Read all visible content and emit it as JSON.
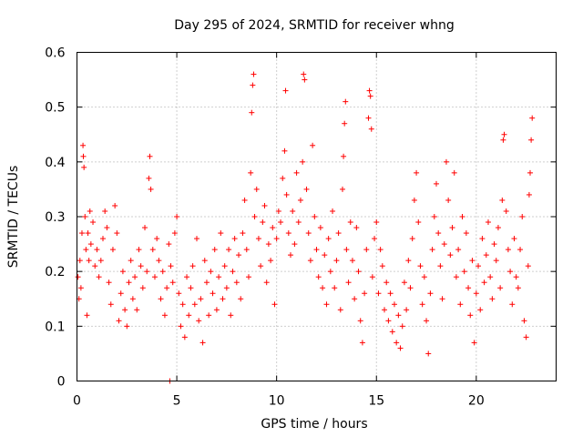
{
  "chart_data": {
    "type": "scatter",
    "title": "Day 295 of 2024, SRMTID for receiver whng",
    "xlabel": "GPS time / hours",
    "ylabel": "SRMTID / TECUs",
    "xlim": [
      0,
      24
    ],
    "ylim": [
      0,
      0.6
    ],
    "xticks": [
      0,
      5,
      10,
      15,
      20
    ],
    "xtick_labels": [
      "0",
      "5",
      "10",
      "15",
      "20"
    ],
    "yticks": [
      0,
      0.1,
      0.2,
      0.3,
      0.4,
      0.5,
      0.6
    ],
    "ytick_labels": [
      "0",
      "0.1",
      "0.2",
      "0.3",
      "0.4",
      "0.5",
      "0.6"
    ],
    "grid": true,
    "marker": "plus",
    "color": "#ff0000",
    "series": [
      {
        "name": "SRMTID",
        "points": [
          [
            0.05,
            0.19
          ],
          [
            0.1,
            0.15
          ],
          [
            0.15,
            0.22
          ],
          [
            0.2,
            0.17
          ],
          [
            0.25,
            0.27
          ],
          [
            0.3,
            0.43
          ],
          [
            0.32,
            0.41
          ],
          [
            0.35,
            0.39
          ],
          [
            0.4,
            0.3
          ],
          [
            0.45,
            0.24
          ],
          [
            0.5,
            0.12
          ],
          [
            0.55,
            0.27
          ],
          [
            0.6,
            0.22
          ],
          [
            0.65,
            0.31
          ],
          [
            0.7,
            0.25
          ],
          [
            0.8,
            0.29
          ],
          [
            0.9,
            0.21
          ],
          [
            1.0,
            0.24
          ],
          [
            1.1,
            0.19
          ],
          [
            1.2,
            0.22
          ],
          [
            1.3,
            0.26
          ],
          [
            1.4,
            0.31
          ],
          [
            1.5,
            0.28
          ],
          [
            1.6,
            0.18
          ],
          [
            1.7,
            0.14
          ],
          [
            1.8,
            0.24
          ],
          [
            1.9,
            0.32
          ],
          [
            2.0,
            0.27
          ],
          [
            2.1,
            0.11
          ],
          [
            2.2,
            0.16
          ],
          [
            2.3,
            0.2
          ],
          [
            2.4,
            0.13
          ],
          [
            2.5,
            0.1
          ],
          [
            2.6,
            0.18
          ],
          [
            2.7,
            0.22
          ],
          [
            2.8,
            0.15
          ],
          [
            2.9,
            0.19
          ],
          [
            3.0,
            0.13
          ],
          [
            3.1,
            0.24
          ],
          [
            3.2,
            0.21
          ],
          [
            3.3,
            0.17
          ],
          [
            3.4,
            0.28
          ],
          [
            3.5,
            0.2
          ],
          [
            3.6,
            0.37
          ],
          [
            3.65,
            0.41
          ],
          [
            3.7,
            0.35
          ],
          [
            3.8,
            0.24
          ],
          [
            3.9,
            0.19
          ],
          [
            4.0,
            0.26
          ],
          [
            4.1,
            0.22
          ],
          [
            4.2,
            0.15
          ],
          [
            4.3,
            0.2
          ],
          [
            4.4,
            0.12
          ],
          [
            4.5,
            0.17
          ],
          [
            4.6,
            0.25
          ],
          [
            4.65,
            0.0
          ],
          [
            4.7,
            0.21
          ],
          [
            4.8,
            0.18
          ],
          [
            4.9,
            0.27
          ],
          [
            5.0,
            0.3
          ],
          [
            5.1,
            0.16
          ],
          [
            5.2,
            0.1
          ],
          [
            5.3,
            0.14
          ],
          [
            5.4,
            0.08
          ],
          [
            5.5,
            0.19
          ],
          [
            5.6,
            0.12
          ],
          [
            5.7,
            0.17
          ],
          [
            5.8,
            0.21
          ],
          [
            5.9,
            0.14
          ],
          [
            6.0,
            0.26
          ],
          [
            6.1,
            0.11
          ],
          [
            6.2,
            0.15
          ],
          [
            6.3,
            0.07
          ],
          [
            6.4,
            0.22
          ],
          [
            6.5,
            0.18
          ],
          [
            6.6,
            0.12
          ],
          [
            6.7,
            0.2
          ],
          [
            6.8,
            0.16
          ],
          [
            6.9,
            0.24
          ],
          [
            7.0,
            0.13
          ],
          [
            7.1,
            0.19
          ],
          [
            7.2,
            0.27
          ],
          [
            7.3,
            0.15
          ],
          [
            7.4,
            0.21
          ],
          [
            7.5,
            0.17
          ],
          [
            7.6,
            0.24
          ],
          [
            7.7,
            0.12
          ],
          [
            7.8,
            0.2
          ],
          [
            7.9,
            0.26
          ],
          [
            8.0,
            0.18
          ],
          [
            8.1,
            0.23
          ],
          [
            8.2,
            0.15
          ],
          [
            8.3,
            0.27
          ],
          [
            8.4,
            0.33
          ],
          [
            8.5,
            0.24
          ],
          [
            8.6,
            0.19
          ],
          [
            8.7,
            0.38
          ],
          [
            8.75,
            0.49
          ],
          [
            8.8,
            0.54
          ],
          [
            8.85,
            0.56
          ],
          [
            8.9,
            0.3
          ],
          [
            9.0,
            0.35
          ],
          [
            9.1,
            0.26
          ],
          [
            9.2,
            0.21
          ],
          [
            9.3,
            0.29
          ],
          [
            9.4,
            0.32
          ],
          [
            9.5,
            0.18
          ],
          [
            9.6,
            0.25
          ],
          [
            9.7,
            0.22
          ],
          [
            9.8,
            0.28
          ],
          [
            9.9,
            0.14
          ],
          [
            10.0,
            0.26
          ],
          [
            10.1,
            0.31
          ],
          [
            10.2,
            0.29
          ],
          [
            10.3,
            0.37
          ],
          [
            10.4,
            0.42
          ],
          [
            10.45,
            0.53
          ],
          [
            10.5,
            0.34
          ],
          [
            10.6,
            0.27
          ],
          [
            10.7,
            0.23
          ],
          [
            10.8,
            0.31
          ],
          [
            10.9,
            0.25
          ],
          [
            11.0,
            0.38
          ],
          [
            11.1,
            0.29
          ],
          [
            11.2,
            0.33
          ],
          [
            11.3,
            0.4
          ],
          [
            11.35,
            0.56
          ],
          [
            11.4,
            0.55
          ],
          [
            11.5,
            0.35
          ],
          [
            11.6,
            0.27
          ],
          [
            11.7,
            0.22
          ],
          [
            11.8,
            0.43
          ],
          [
            11.9,
            0.3
          ],
          [
            12.0,
            0.24
          ],
          [
            12.1,
            0.19
          ],
          [
            12.2,
            0.28
          ],
          [
            12.3,
            0.17
          ],
          [
            12.4,
            0.23
          ],
          [
            12.5,
            0.14
          ],
          [
            12.6,
            0.26
          ],
          [
            12.7,
            0.2
          ],
          [
            12.8,
            0.31
          ],
          [
            12.9,
            0.17
          ],
          [
            13.0,
            0.22
          ],
          [
            13.1,
            0.27
          ],
          [
            13.2,
            0.13
          ],
          [
            13.3,
            0.35
          ],
          [
            13.35,
            0.41
          ],
          [
            13.4,
            0.47
          ],
          [
            13.45,
            0.51
          ],
          [
            13.5,
            0.24
          ],
          [
            13.6,
            0.18
          ],
          [
            13.7,
            0.29
          ],
          [
            13.8,
            0.22
          ],
          [
            13.9,
            0.15
          ],
          [
            14.0,
            0.28
          ],
          [
            14.1,
            0.2
          ],
          [
            14.2,
            0.11
          ],
          [
            14.3,
            0.07
          ],
          [
            14.4,
            0.16
          ],
          [
            14.5,
            0.24
          ],
          [
            14.6,
            0.48
          ],
          [
            14.65,
            0.53
          ],
          [
            14.7,
            0.52
          ],
          [
            14.75,
            0.46
          ],
          [
            14.8,
            0.19
          ],
          [
            14.9,
            0.26
          ],
          [
            15.0,
            0.29
          ],
          [
            15.1,
            0.16
          ],
          [
            15.2,
            0.24
          ],
          [
            15.3,
            0.21
          ],
          [
            15.4,
            0.13
          ],
          [
            15.5,
            0.18
          ],
          [
            15.6,
            0.11
          ],
          [
            15.7,
            0.16
          ],
          [
            15.8,
            0.09
          ],
          [
            15.9,
            0.14
          ],
          [
            16.0,
            0.07
          ],
          [
            16.1,
            0.12
          ],
          [
            16.2,
            0.06
          ],
          [
            16.3,
            0.1
          ],
          [
            16.4,
            0.18
          ],
          [
            16.5,
            0.13
          ],
          [
            16.6,
            0.22
          ],
          [
            16.7,
            0.17
          ],
          [
            16.8,
            0.26
          ],
          [
            16.9,
            0.33
          ],
          [
            17.0,
            0.38
          ],
          [
            17.1,
            0.29
          ],
          [
            17.2,
            0.21
          ],
          [
            17.3,
            0.14
          ],
          [
            17.4,
            0.19
          ],
          [
            17.5,
            0.11
          ],
          [
            17.6,
            0.05
          ],
          [
            17.7,
            0.16
          ],
          [
            17.8,
            0.24
          ],
          [
            17.9,
            0.3
          ],
          [
            18.0,
            0.36
          ],
          [
            18.1,
            0.27
          ],
          [
            18.2,
            0.21
          ],
          [
            18.3,
            0.15
          ],
          [
            18.4,
            0.25
          ],
          [
            18.5,
            0.4
          ],
          [
            18.6,
            0.33
          ],
          [
            18.7,
            0.23
          ],
          [
            18.8,
            0.28
          ],
          [
            18.9,
            0.38
          ],
          [
            19.0,
            0.19
          ],
          [
            19.1,
            0.24
          ],
          [
            19.2,
            0.14
          ],
          [
            19.3,
            0.3
          ],
          [
            19.4,
            0.2
          ],
          [
            19.5,
            0.27
          ],
          [
            19.6,
            0.17
          ],
          [
            19.7,
            0.12
          ],
          [
            19.8,
            0.22
          ],
          [
            19.9,
            0.07
          ],
          [
            20.0,
            0.16
          ],
          [
            20.1,
            0.21
          ],
          [
            20.2,
            0.13
          ],
          [
            20.3,
            0.26
          ],
          [
            20.4,
            0.18
          ],
          [
            20.5,
            0.23
          ],
          [
            20.6,
            0.29
          ],
          [
            20.7,
            0.19
          ],
          [
            20.8,
            0.15
          ],
          [
            20.9,
            0.25
          ],
          [
            21.0,
            0.22
          ],
          [
            21.1,
            0.28
          ],
          [
            21.2,
            0.17
          ],
          [
            21.3,
            0.33
          ],
          [
            21.35,
            0.44
          ],
          [
            21.4,
            0.45
          ],
          [
            21.5,
            0.31
          ],
          [
            21.6,
            0.24
          ],
          [
            21.7,
            0.2
          ],
          [
            21.8,
            0.14
          ],
          [
            21.9,
            0.26
          ],
          [
            22.0,
            0.19
          ],
          [
            22.1,
            0.17
          ],
          [
            22.2,
            0.24
          ],
          [
            22.3,
            0.3
          ],
          [
            22.4,
            0.11
          ],
          [
            22.5,
            0.08
          ],
          [
            22.6,
            0.21
          ],
          [
            22.65,
            0.34
          ],
          [
            22.7,
            0.38
          ],
          [
            22.75,
            0.44
          ],
          [
            22.8,
            0.48
          ]
        ]
      }
    ]
  }
}
